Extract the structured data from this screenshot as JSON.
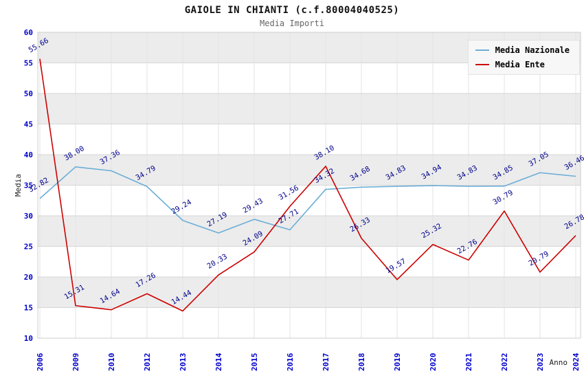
{
  "chart_data": {
    "type": "line",
    "title": "GAIOLE IN CHIANTI (c.f.80004040525)",
    "subtitle": "Media Importi",
    "xlabel": "Anno",
    "ylabel": "Media",
    "ylim": [
      10,
      60
    ],
    "ytick_step": 5,
    "grid": true,
    "legend_position": "top-right",
    "categories": [
      "2006",
      "2009",
      "2010",
      "2012",
      "2013",
      "2014",
      "2015",
      "2016",
      "2017",
      "2018",
      "2019",
      "2020",
      "2021",
      "2022",
      "2023",
      "2024"
    ],
    "series": [
      {
        "name": "Media Nazionale",
        "color": "#6baed6",
        "values": [
          32.82,
          38.0,
          37.36,
          34.79,
          29.24,
          27.19,
          29.43,
          27.71,
          34.32,
          34.68,
          34.83,
          34.94,
          34.83,
          34.85,
          37.05,
          36.46
        ]
      },
      {
        "name": "Media Ente",
        "color": "#cc0000",
        "values": [
          55.66,
          15.31,
          14.64,
          17.26,
          14.44,
          20.33,
          24.09,
          31.56,
          38.1,
          26.33,
          19.57,
          25.32,
          22.76,
          30.79,
          20.79,
          26.78
        ]
      }
    ],
    "colors": {
      "tick_label": "#0000cc",
      "point_label": "#00008b",
      "band_gray": "#ececec",
      "band_white": "#ffffff",
      "grid_line": "#d6d6d6",
      "vgrid_line": "#e3e3e3",
      "plot_border": "#cccccc"
    }
  }
}
